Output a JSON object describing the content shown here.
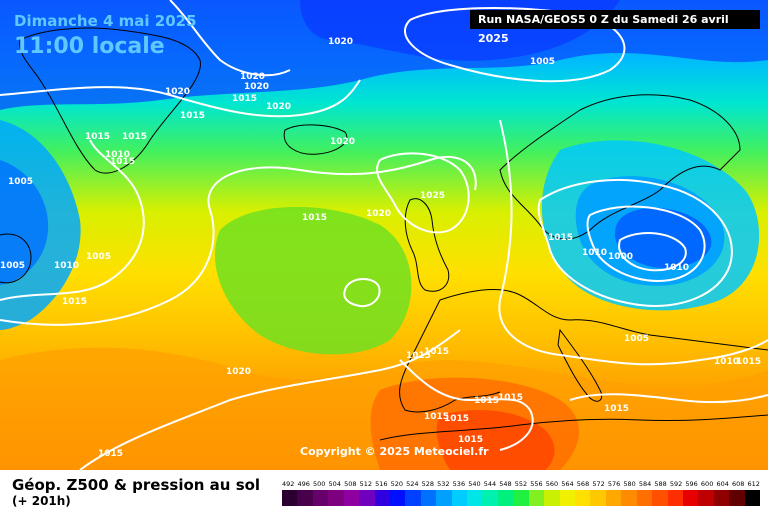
{
  "header": {
    "date_line": "Dimanche 4 mai 2025",
    "time_line": "11:00 locale",
    "run_info": "Run NASA/GEOS5 0 Z du Samedi 26 avril 2025"
  },
  "copyright": "Copyright © 2025 Meteociel.fr",
  "footer": {
    "title": "Géop. Z500 & pression au sol",
    "subtitle": "(+ 201h)"
  },
  "legend": {
    "values": [
      "492",
      "496",
      "500",
      "504",
      "508",
      "512",
      "516",
      "520",
      "524",
      "528",
      "532",
      "536",
      "540",
      "544",
      "548",
      "552",
      "556",
      "560",
      "564",
      "568",
      "572",
      "576",
      "580",
      "584",
      "588",
      "592",
      "596",
      "600",
      "604",
      "608",
      "612"
    ],
    "colors": [
      "#2b0030",
      "#48004c",
      "#66006a",
      "#7f007f",
      "#8f00a0",
      "#7000c0",
      "#3000e0",
      "#0010ff",
      "#0040ff",
      "#0070ff",
      "#00a0ff",
      "#00ccff",
      "#00e6e6",
      "#00f0b0",
      "#00f080",
      "#20f040",
      "#80f020",
      "#c8f000",
      "#f0f000",
      "#ffe000",
      "#ffc800",
      "#ffa800",
      "#ff8c00",
      "#ff6e00",
      "#ff5000",
      "#ff2e00",
      "#e80000",
      "#c00000",
      "#900000",
      "#600000",
      "#000000"
    ]
  },
  "isobar_labels": [
    "1020",
    "1005",
    "1020",
    "1020",
    "1015",
    "1020",
    "1020",
    "1015",
    "1015",
    "1015",
    "1010",
    "1015",
    "1020",
    "1005",
    "1025",
    "1015",
    "1020",
    "1005",
    "1010",
    "1005",
    "1015",
    "1010",
    "1000",
    "1010",
    "1015",
    "1020",
    "1015",
    "1005",
    "1015",
    "1010",
    "1015",
    "1015",
    "1015",
    "1015",
    "1015",
    "1015",
    "1015",
    "1015"
  ]
}
